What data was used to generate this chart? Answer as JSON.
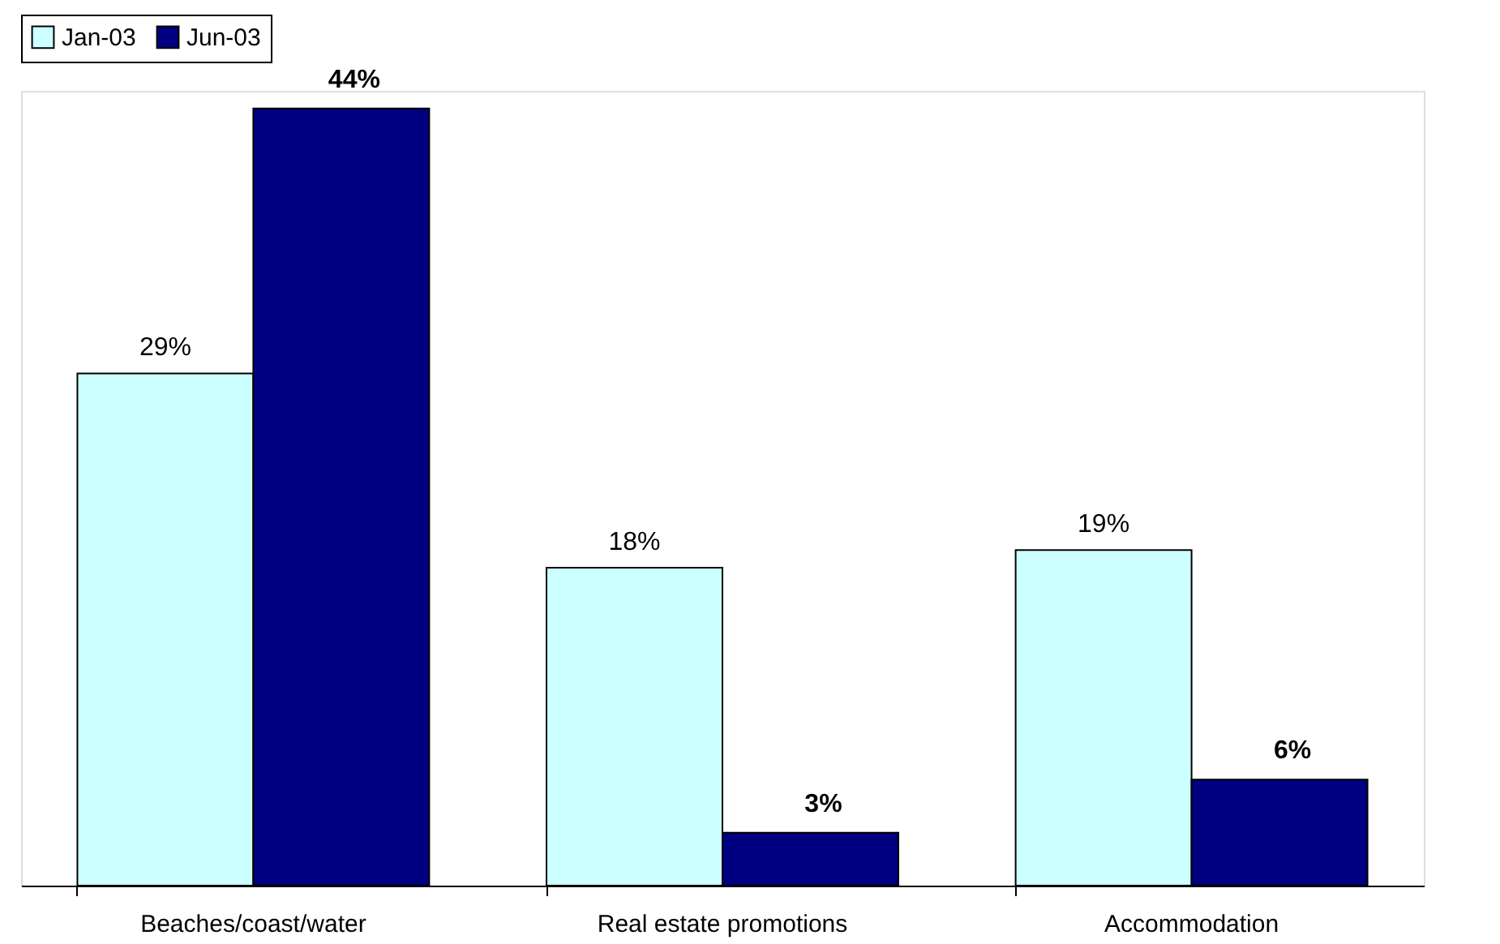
{
  "chart_data": {
    "type": "bar",
    "categories": [
      "Beaches/coast/water",
      "Real estate promotions",
      "Accommodation"
    ],
    "series": [
      {
        "name": "Jan-03",
        "color": "#ccffff",
        "values": [
          29,
          18,
          19
        ],
        "value_labels": [
          "29%",
          "18%",
          "19%"
        ]
      },
      {
        "name": "Jun-03",
        "color": "#000080",
        "values": [
          44,
          3,
          6
        ],
        "value_labels": [
          "44%",
          "3%",
          "6%"
        ]
      }
    ],
    "legend": "top",
    "grid": false
  }
}
